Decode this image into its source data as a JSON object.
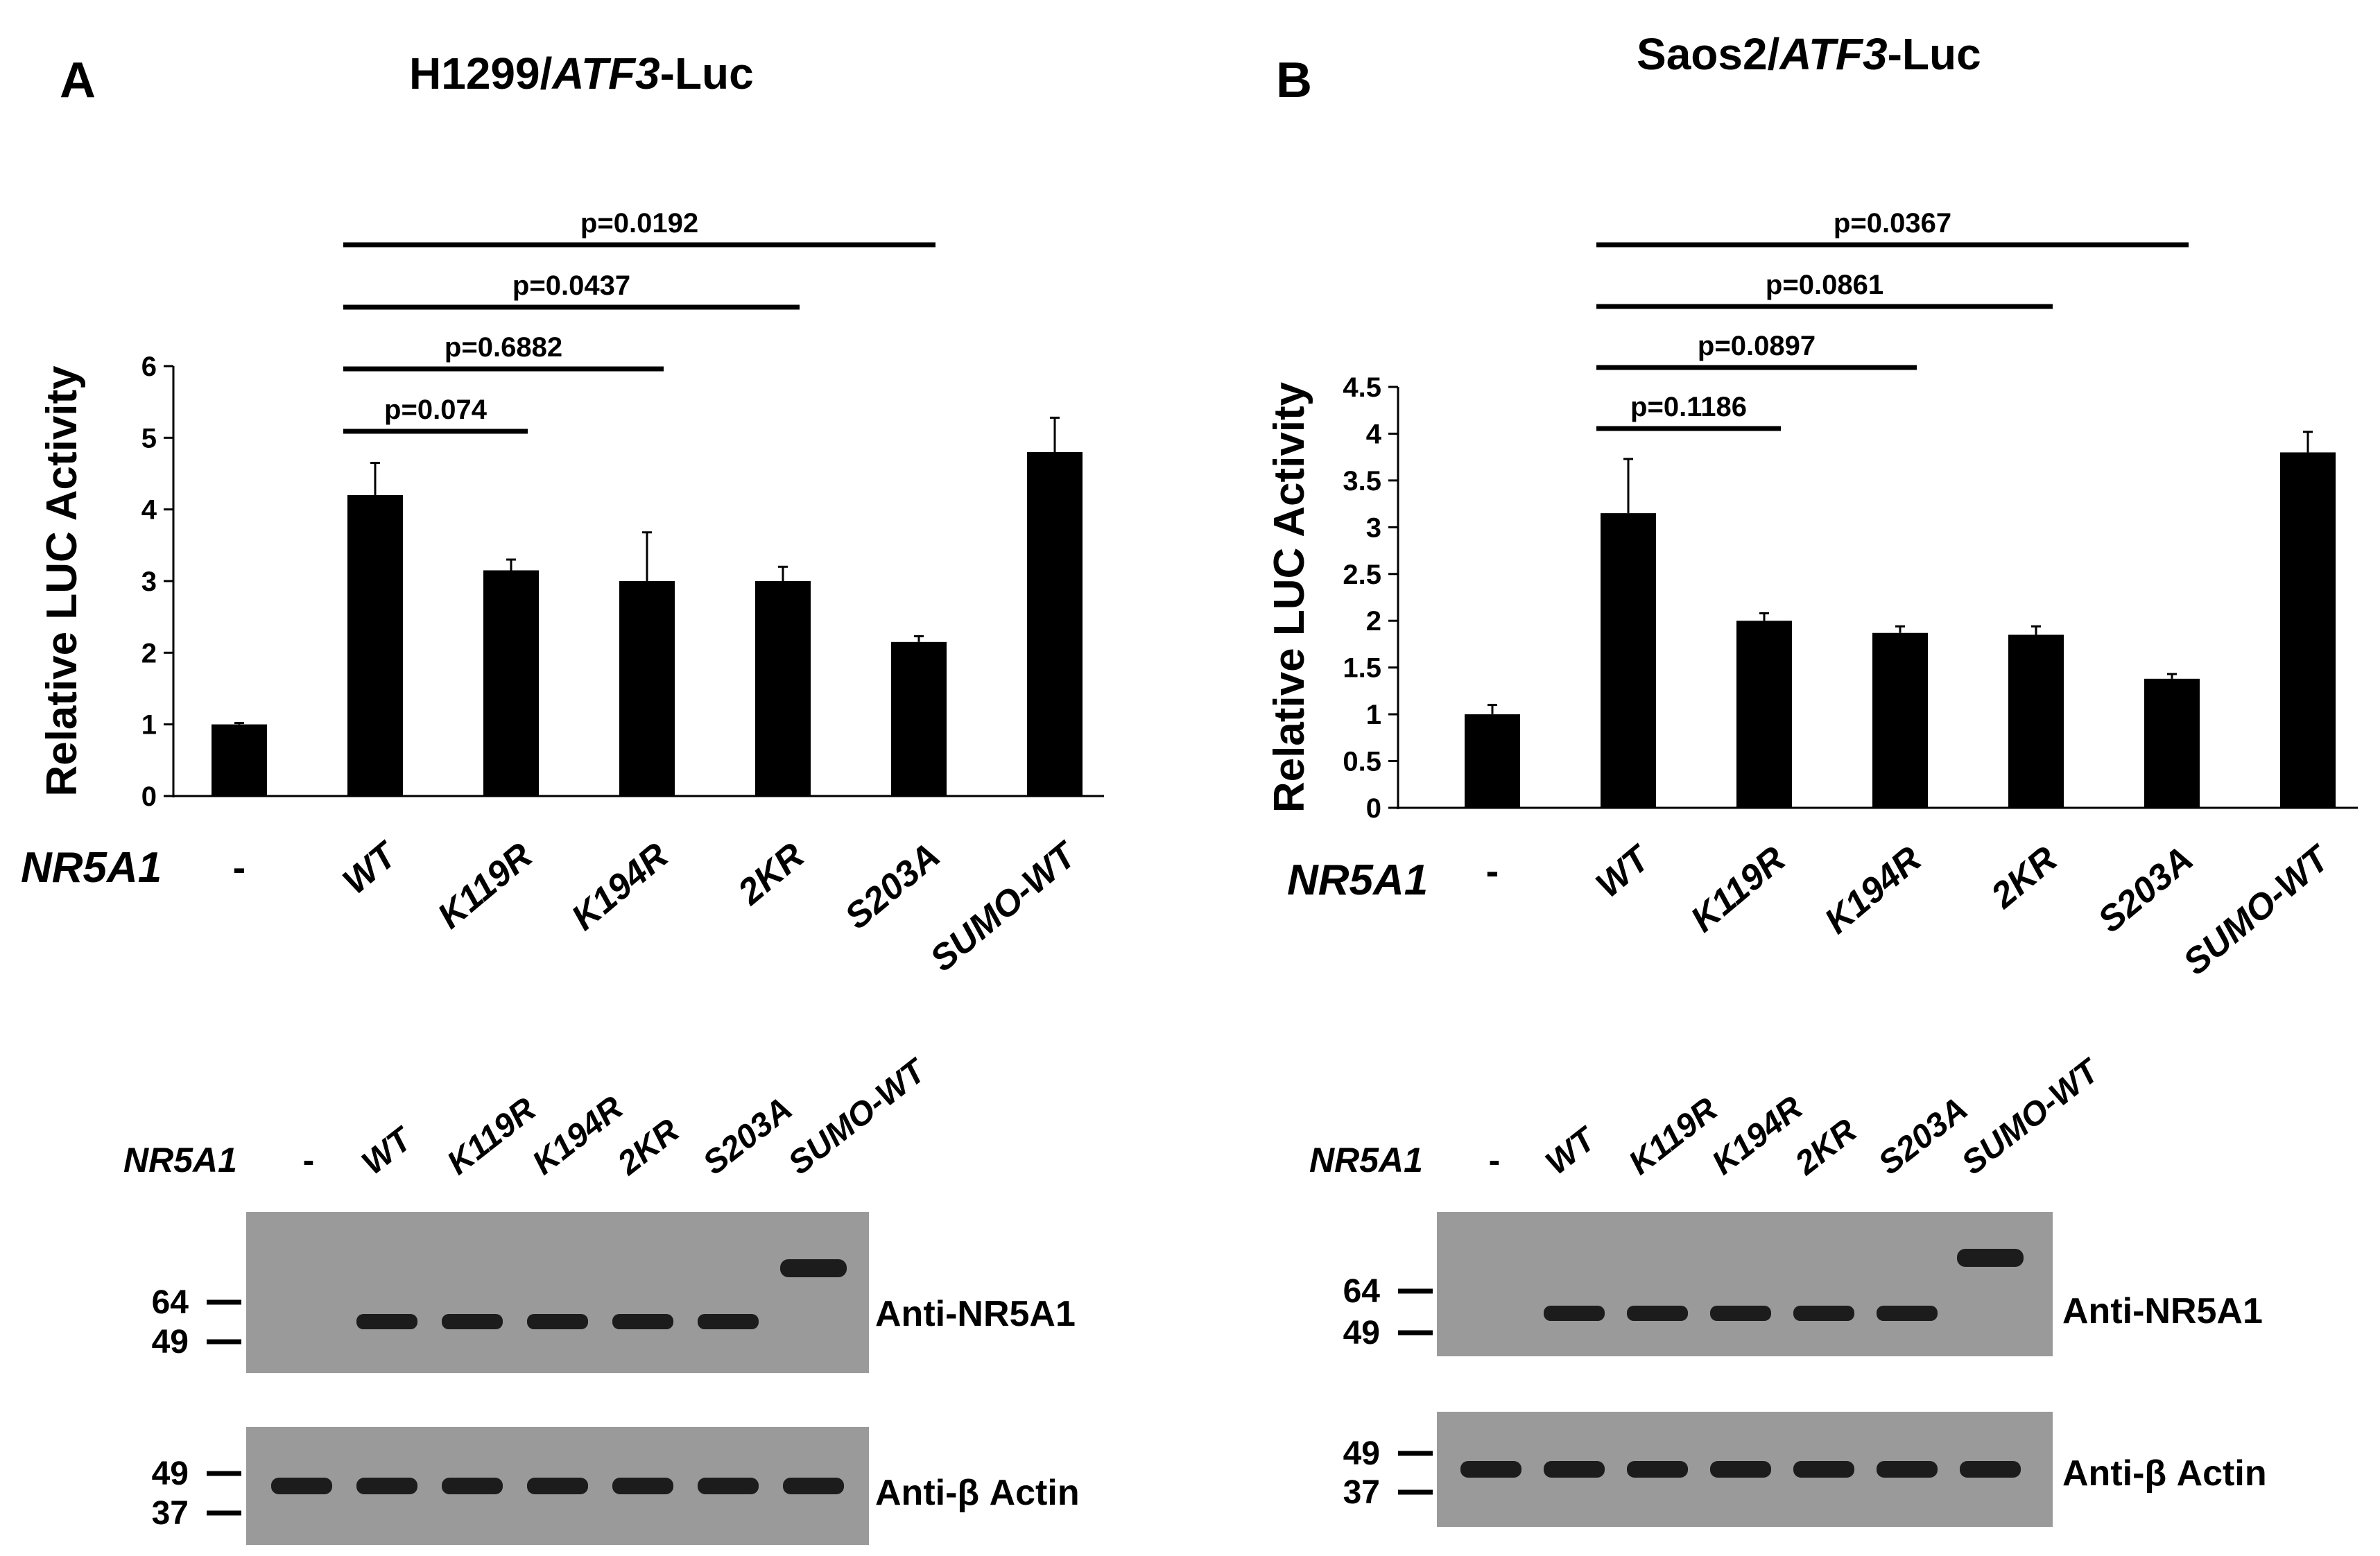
{
  "panels": [
    {
      "letter": "A",
      "title_main": "H1299/",
      "title_gene": "ATF3",
      "title_suffix": "-Luc",
      "gene_label": "NR5A1",
      "chart_data": {
        "type": "bar",
        "ylabel": "Relative LUC Activity",
        "ylim": [
          0,
          6
        ],
        "yticks": [
          "0",
          "1",
          "2",
          "3",
          "4",
          "5",
          "6"
        ],
        "categories": [
          "-",
          "WT",
          "K119R",
          "K194R",
          "2KR",
          "S203A",
          "SUMO-WT"
        ],
        "values": [
          1.0,
          4.2,
          3.15,
          3.0,
          3.0,
          2.15,
          4.8
        ],
        "errors": [
          0.02,
          0.45,
          0.15,
          0.68,
          0.2,
          0.08,
          0.48
        ],
        "grid": false,
        "significance": [
          {
            "from": 1,
            "to": 2,
            "label": "p=0.074"
          },
          {
            "from": 1,
            "to": 3,
            "label": "p=0.6882"
          },
          {
            "from": 1,
            "to": 4,
            "label": "p=0.0437"
          },
          {
            "from": 1,
            "to": 5,
            "label": "p=0.0192"
          }
        ]
      },
      "blot": {
        "lanes": [
          "-",
          "WT",
          "K119R",
          "K194R",
          "2KR",
          "S203A",
          "SUMO-WT"
        ],
        "top_label": "Anti-NR5A1",
        "top_markers": [
          "64",
          "49"
        ],
        "bottom_label": "Anti-β Actin",
        "bottom_markers": [
          "49",
          "37"
        ]
      }
    },
    {
      "letter": "B",
      "title_main": "Saos2/",
      "title_gene": "ATF3",
      "title_suffix": "-Luc",
      "gene_label": "NR5A1",
      "chart_data": {
        "type": "bar",
        "ylabel": "Relative LUC Activity",
        "ylim": [
          0,
          4.5
        ],
        "yticks": [
          "0",
          "0.5",
          "1",
          "1.5",
          "2",
          "2.5",
          "3",
          "3.5",
          "4",
          "4.5"
        ],
        "categories": [
          "-",
          "WT",
          "K119R",
          "K194R",
          "2KR",
          "S203A",
          "SUMO-WT"
        ],
        "values": [
          1.0,
          3.15,
          2.0,
          1.87,
          1.85,
          1.38,
          3.8
        ],
        "errors": [
          0.1,
          0.58,
          0.08,
          0.07,
          0.09,
          0.05,
          0.22
        ],
        "grid": false,
        "significance": [
          {
            "from": 1,
            "to": 2,
            "label": "p=0.1186"
          },
          {
            "from": 1,
            "to": 3,
            "label": "p=0.0897"
          },
          {
            "from": 1,
            "to": 4,
            "label": "p=0.0861"
          },
          {
            "from": 1,
            "to": 5,
            "label": "p=0.0367"
          }
        ]
      },
      "blot": {
        "lanes": [
          "-",
          "WT",
          "K119R",
          "K194R",
          "2KR",
          "S203A",
          "SUMO-WT"
        ],
        "top_label": "Anti-NR5A1",
        "top_markers": [
          "64",
          "49"
        ],
        "bottom_label": "Anti-β Actin",
        "bottom_markers": [
          "49",
          "37"
        ]
      }
    }
  ],
  "colors": {
    "bar": "#000000",
    "blot_bg": "#9a9a9a",
    "band": "#1c1c1c"
  }
}
